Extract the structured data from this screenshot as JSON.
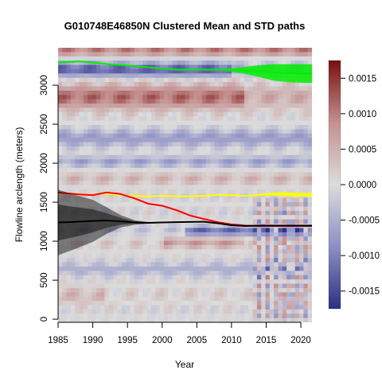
{
  "chart_data": {
    "type": "heatmap",
    "title": "G010748E46850N Clustered Mean and STD paths",
    "xlabel": "Year",
    "ylabel": "Flowline arclength (meters)",
    "xlim": [
      1985,
      2021.6
    ],
    "ylim": [
      -40,
      3480
    ],
    "x_ticks": [
      1985,
      1990,
      1995,
      2000,
      2005,
      2010,
      2015,
      2020
    ],
    "x_tick_labels": [
      "1985",
      "1990",
      "1995",
      "2000",
      "2005",
      "2010",
      "2015",
      "2020"
    ],
    "y_ticks": [
      0,
      500,
      1000,
      1500,
      2000,
      2500,
      3000
    ],
    "y_tick_labels": [
      "0",
      "500",
      "1000",
      "1500",
      "2000",
      "2500",
      "3000"
    ],
    "colorbar": {
      "range": [
        -0.00175,
        0.00175
      ],
      "ticks": [
        0.0015,
        0.001,
        0.0005,
        0.0,
        -0.0005,
        -0.001,
        -0.0015
      ],
      "tick_labels": [
        "0.0015",
        "0.0010",
        "0.0005",
        "0.0000",
        "-0.0005",
        "-0.0010",
        "-0.0015"
      ],
      "colors": [
        "#2d2f86",
        "#8c8fc4",
        "#dcdcdc",
        "#c49090",
        "#7a0f0f"
      ]
    },
    "series": [
      {
        "color": "#00ee00",
        "x": [
          1985,
          1988,
          1990,
          1993,
          1996,
          1999,
          2002,
          2005,
          2008,
          2010,
          2012,
          2014,
          2016,
          2018,
          2020,
          2021.6
        ],
        "y": [
          3290,
          3305,
          3290,
          3265,
          3245,
          3220,
          3200,
          3200,
          3200,
          3195,
          3190,
          3180,
          3165,
          3155,
          3150,
          3150
        ],
        "spread": [
          0,
          0,
          0,
          0,
          0,
          0,
          0,
          5,
          10,
          20,
          45,
          75,
          105,
          115,
          120,
          120
        ]
      },
      {
        "color": "#ffff00",
        "x": [
          1985,
          1987,
          1990,
          1992,
          1995,
          1998,
          2000,
          2003,
          2006,
          2008,
          2010,
          2012,
          2014,
          2016,
          2018,
          2020,
          2021.6
        ],
        "y": [
          1615,
          1600,
          1595,
          1610,
          1585,
          1575,
          1580,
          1575,
          1580,
          1595,
          1590,
          1580,
          1595,
          1605,
          1600,
          1595,
          1595
        ],
        "spread": [
          0,
          0,
          0,
          0,
          0,
          0,
          0,
          0,
          0,
          0,
          0,
          0,
          10,
          20,
          25,
          25,
          25
        ]
      },
      {
        "color": "#ff0000",
        "x": [
          1985,
          1988,
          1990,
          1992,
          1994,
          1996,
          1998,
          2000,
          2002,
          2004,
          2006,
          2008,
          2010,
          2012,
          2014,
          2016,
          2018,
          2021.6
        ],
        "y": [
          1625,
          1600,
          1590,
          1625,
          1605,
          1550,
          1480,
          1455,
          1400,
          1330,
          1285,
          1245,
          1215,
          1200,
          1195,
          1195,
          1195,
          1195
        ],
        "spread": [
          0,
          0,
          0,
          0,
          0,
          0,
          0,
          0,
          0,
          0,
          0,
          0,
          0,
          0,
          0,
          0,
          0,
          0
        ]
      },
      {
        "color": "#000000",
        "x": [
          1985,
          1987,
          1990,
          1992,
          1994,
          1996,
          1998,
          2000,
          2003,
          2006,
          2008,
          2010,
          2012,
          2014,
          2016,
          2018,
          2021.6
        ],
        "y": [
          1240,
          1245,
          1260,
          1265,
          1255,
          1240,
          1235,
          1240,
          1245,
          1250,
          1230,
          1205,
          1195,
          1200,
          1200,
          1200,
          1200
        ],
        "spread": [
          420,
          360,
          270,
          170,
          80,
          30,
          10,
          0,
          0,
          0,
          0,
          0,
          0,
          0,
          0,
          0,
          0
        ]
      }
    ]
  }
}
